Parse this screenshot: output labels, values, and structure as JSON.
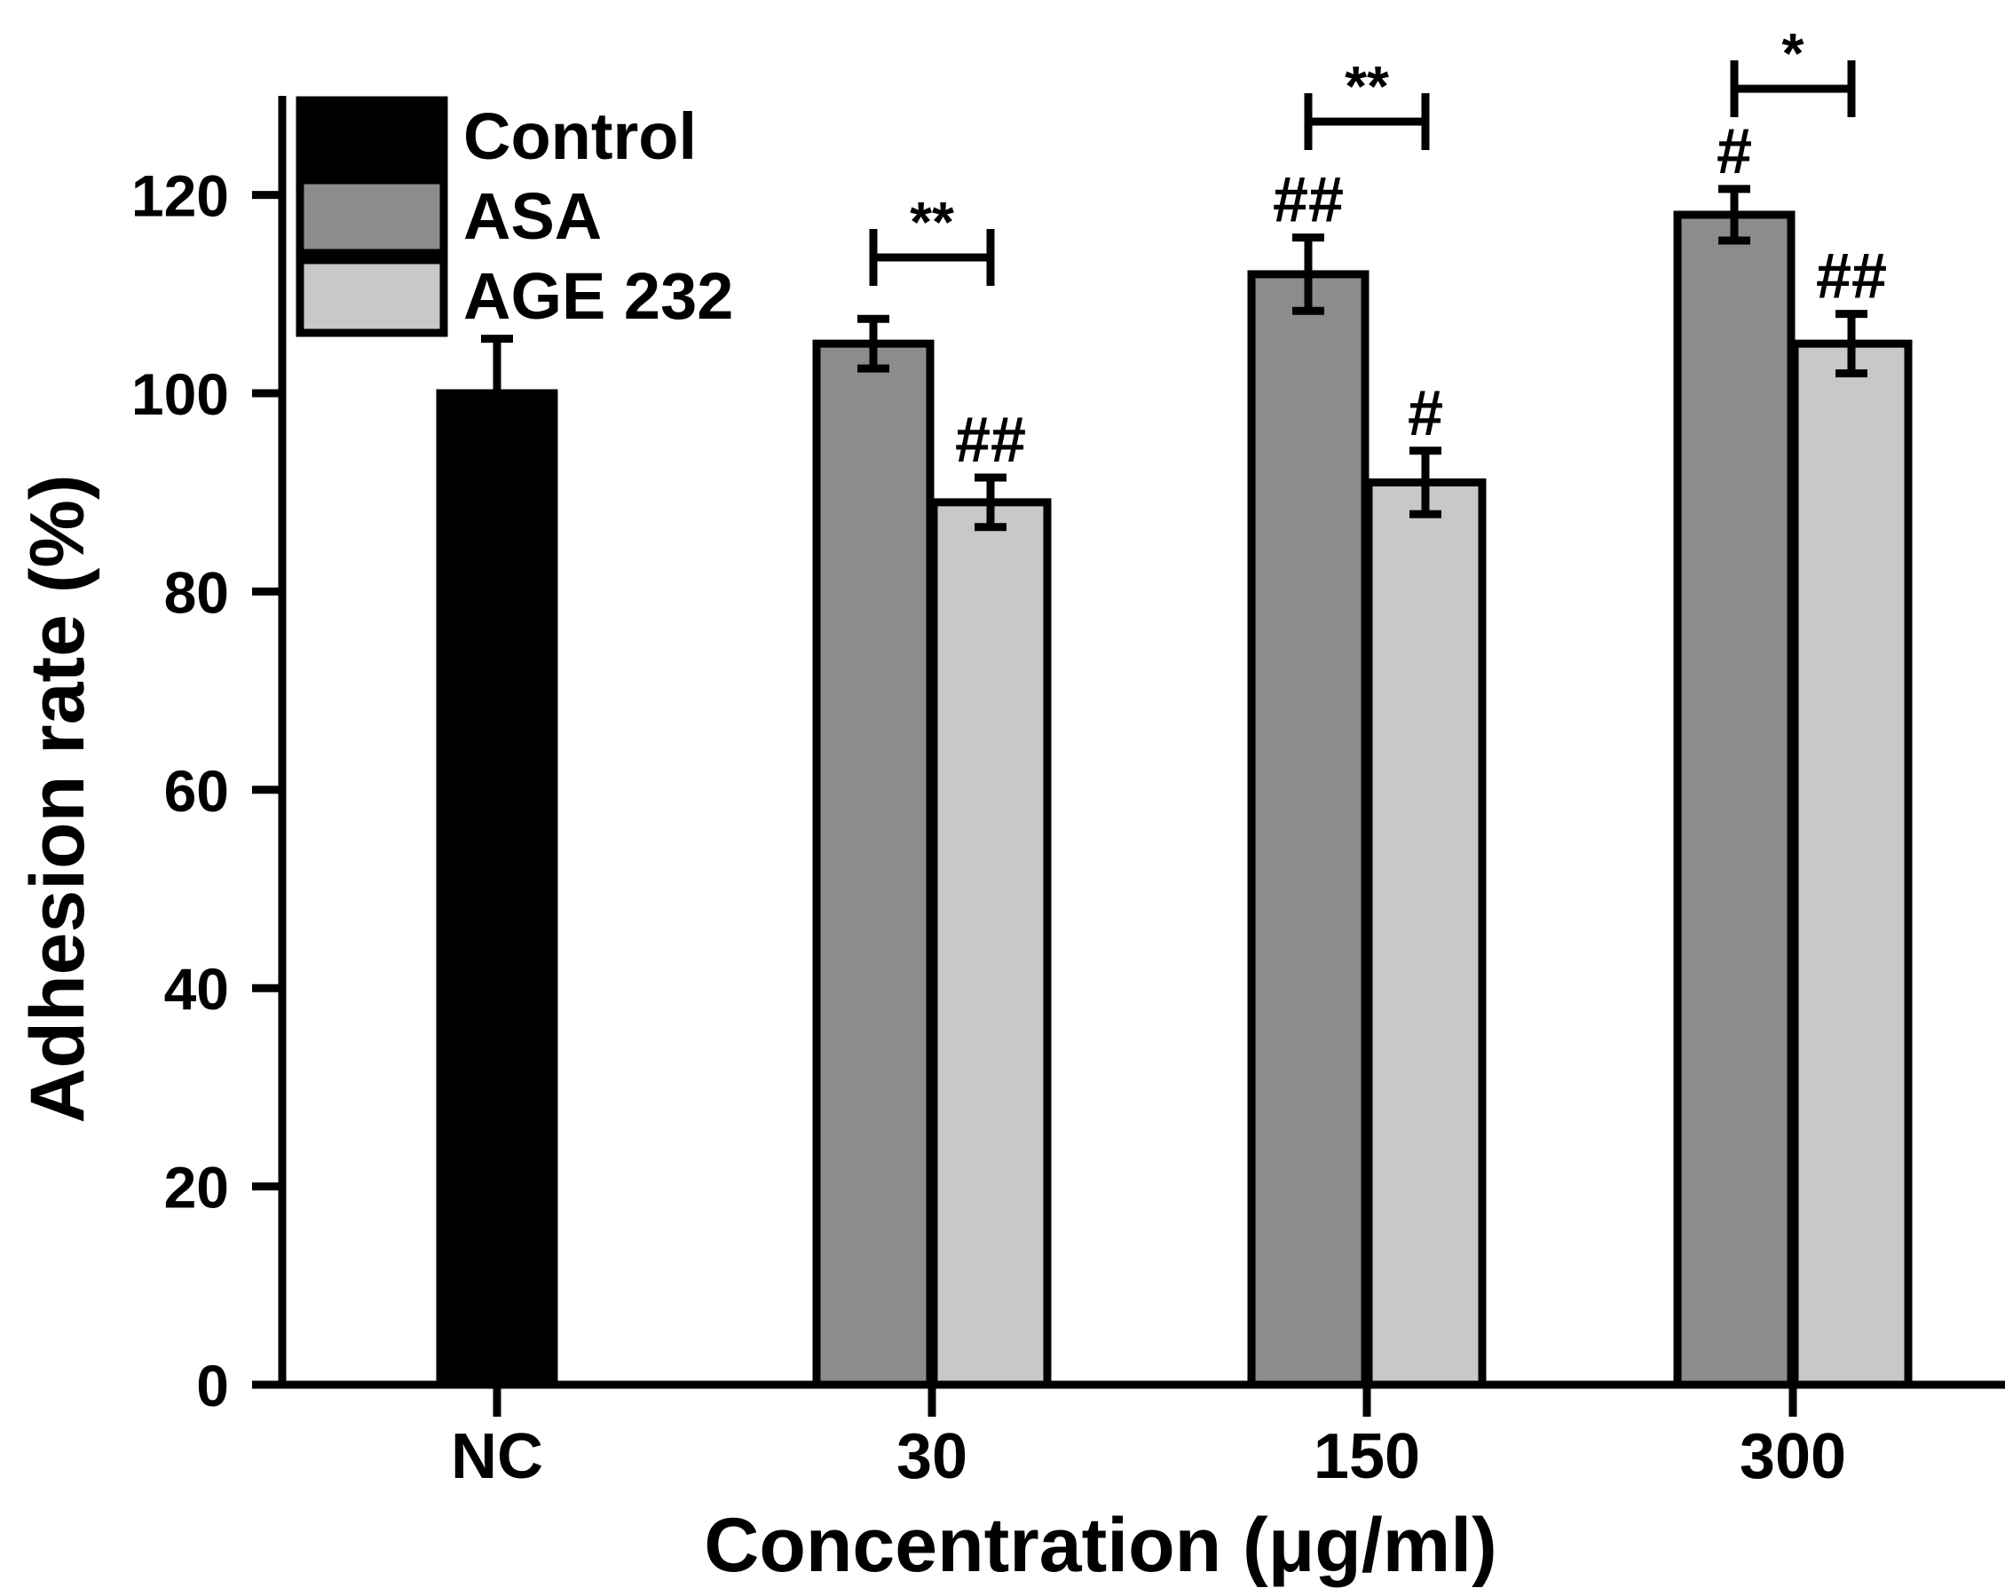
{
  "chart_data": {
    "type": "bar",
    "title": "",
    "xlabel": "Concentration (μg/ml)",
    "ylabel": "Adhesion rate (%)",
    "ylim": [
      0,
      130
    ],
    "yticks": [
      0,
      20,
      40,
      60,
      80,
      100,
      120
    ],
    "categories": [
      "NC",
      "30",
      "150",
      "300"
    ],
    "legend": {
      "position": "top-left",
      "entries": [
        {
          "name": "Control",
          "color": "#000000"
        },
        {
          "name": "ASA",
          "color": "#8c8c8c"
        },
        {
          "name": "AGE 232",
          "color": "#c8c8c8"
        }
      ]
    },
    "series": [
      {
        "name": "Control",
        "color": "#000000",
        "values": [
          100,
          null,
          null,
          null
        ],
        "errors": [
          5.5,
          null,
          null,
          null
        ],
        "annotations": [
          "",
          "",
          "",
          ""
        ]
      },
      {
        "name": "ASA",
        "color": "#8c8c8c",
        "values": [
          null,
          105,
          112,
          118
        ],
        "errors": [
          null,
          2.5,
          3.7,
          2.6
        ],
        "annotations": [
          "",
          "",
          "##",
          "#"
        ]
      },
      {
        "name": "AGE 232",
        "color": "#c8c8c8",
        "values": [
          null,
          89,
          91,
          105
        ],
        "errors": [
          null,
          2.5,
          3.2,
          3.0
        ],
        "annotations": [
          "",
          "##",
          "#",
          "##"
        ]
      }
    ],
    "comparisons": [
      {
        "category": "30",
        "label": "**"
      },
      {
        "category": "150",
        "label": "**"
      },
      {
        "category": "300",
        "label": "*"
      }
    ]
  }
}
